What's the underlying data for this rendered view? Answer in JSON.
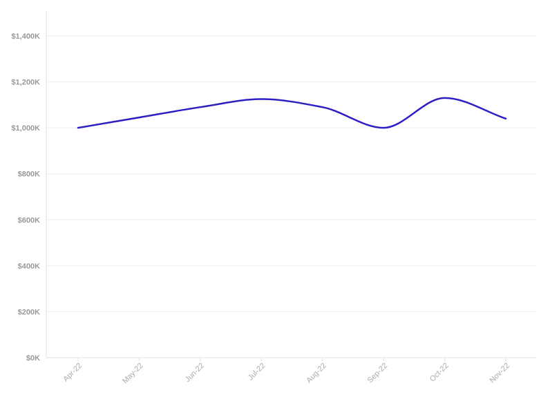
{
  "chart_data": {
    "type": "line",
    "categories": [
      "Apr-22",
      "May-22",
      "Jun-22",
      "Jul-22",
      "Aug-22",
      "Sep-22",
      "Oct-22",
      "Nov-22"
    ],
    "series": [
      {
        "values": [
          1000000,
          1045000,
          1090000,
          1125000,
          1090000,
          1000000,
          1130000,
          1040000
        ],
        "color": "#2d1fc4"
      }
    ],
    "y_ticks": [
      {
        "value": 0,
        "label": "$0K"
      },
      {
        "value": 200000,
        "label": "$200K"
      },
      {
        "value": 400000,
        "label": "$400K"
      },
      {
        "value": 600000,
        "label": "$600K"
      },
      {
        "value": 800000,
        "label": "$800K"
      },
      {
        "value": 1000000,
        "label": "$1,000K"
      },
      {
        "value": 1200000,
        "label": "$1,200K"
      },
      {
        "value": 1400000,
        "label": "$1,400K"
      }
    ],
    "ylim": [
      0,
      1400000
    ],
    "grid": true,
    "legend": "none"
  }
}
